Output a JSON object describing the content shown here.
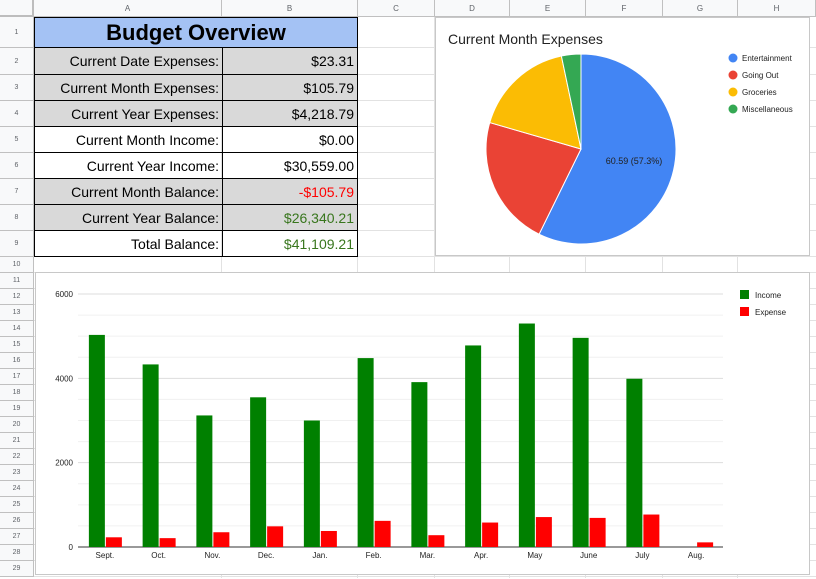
{
  "sheet": {
    "columns": [
      "A",
      "B",
      "C",
      "D",
      "E",
      "F",
      "G",
      "H"
    ],
    "rows": [
      "1",
      "2",
      "3",
      "4",
      "5",
      "6",
      "7",
      "8",
      "9",
      "10",
      "11",
      "12",
      "13",
      "14",
      "15",
      "16",
      "17",
      "18",
      "19",
      "20",
      "21",
      "22",
      "23",
      "24",
      "25",
      "26",
      "27",
      "28",
      "29"
    ]
  },
  "budget": {
    "title": "Budget Overview",
    "rows": [
      {
        "label": "Current Date Expenses:",
        "value": "$23.31",
        "shade": true,
        "color": "#000000"
      },
      {
        "label": "Current Month Expenses:",
        "value": "$105.79",
        "shade": true,
        "color": "#000000"
      },
      {
        "label": "Current Year Expenses:",
        "value": "$4,218.79",
        "shade": true,
        "color": "#000000"
      },
      {
        "label": "Current Month Income:",
        "value": "$0.00",
        "shade": false,
        "color": "#000000"
      },
      {
        "label": "Current Year Income:",
        "value": "$30,559.00",
        "shade": false,
        "color": "#000000"
      },
      {
        "label": "Current Month Balance:",
        "value": "-$105.79",
        "shade": true,
        "color": "#ff0000"
      },
      {
        "label": "Current Year Balance:",
        "value": "$26,340.21",
        "shade": true,
        "color": "#38761d"
      },
      {
        "label": "Total Balance:",
        "value": "$41,109.21",
        "shade": false,
        "color": "#38761d"
      }
    ]
  },
  "chart_data": [
    {
      "type": "pie",
      "title": "Current Month Expenses",
      "slices": [
        {
          "name": "Entertainment",
          "value": 60.59,
          "color": "#4285f4"
        },
        {
          "name": "Going Out",
          "value": 23.5,
          "color": "#ea4335"
        },
        {
          "name": "Groceries",
          "value": 18.2,
          "color": "#fbbc04"
        },
        {
          "name": "Miscellaneous",
          "value": 3.5,
          "color": "#34a853"
        }
      ],
      "slice_label": "60.59 (57.3%)",
      "legend_position": "right"
    },
    {
      "type": "bar",
      "title": "",
      "categories": [
        "Sept.",
        "Oct.",
        "Nov.",
        "Dec.",
        "Jan.",
        "Feb.",
        "Mar.",
        "Apr.",
        "May",
        "June",
        "July",
        "Aug."
      ],
      "series": [
        {
          "name": "Income",
          "color": "#008000",
          "values": [
            5030,
            4330,
            3120,
            3550,
            3000,
            4480,
            3910,
            4780,
            5300,
            4960,
            3990,
            0
          ]
        },
        {
          "name": "Expense",
          "color": "#ff0000",
          "values": [
            230,
            210,
            350,
            490,
            380,
            620,
            280,
            580,
            710,
            690,
            770,
            110
          ]
        }
      ],
      "ylim": [
        0,
        6000
      ],
      "yticks": [
        "0",
        "2000",
        "4000",
        "6000"
      ],
      "grid": true,
      "legend_position": "top-right"
    }
  ]
}
